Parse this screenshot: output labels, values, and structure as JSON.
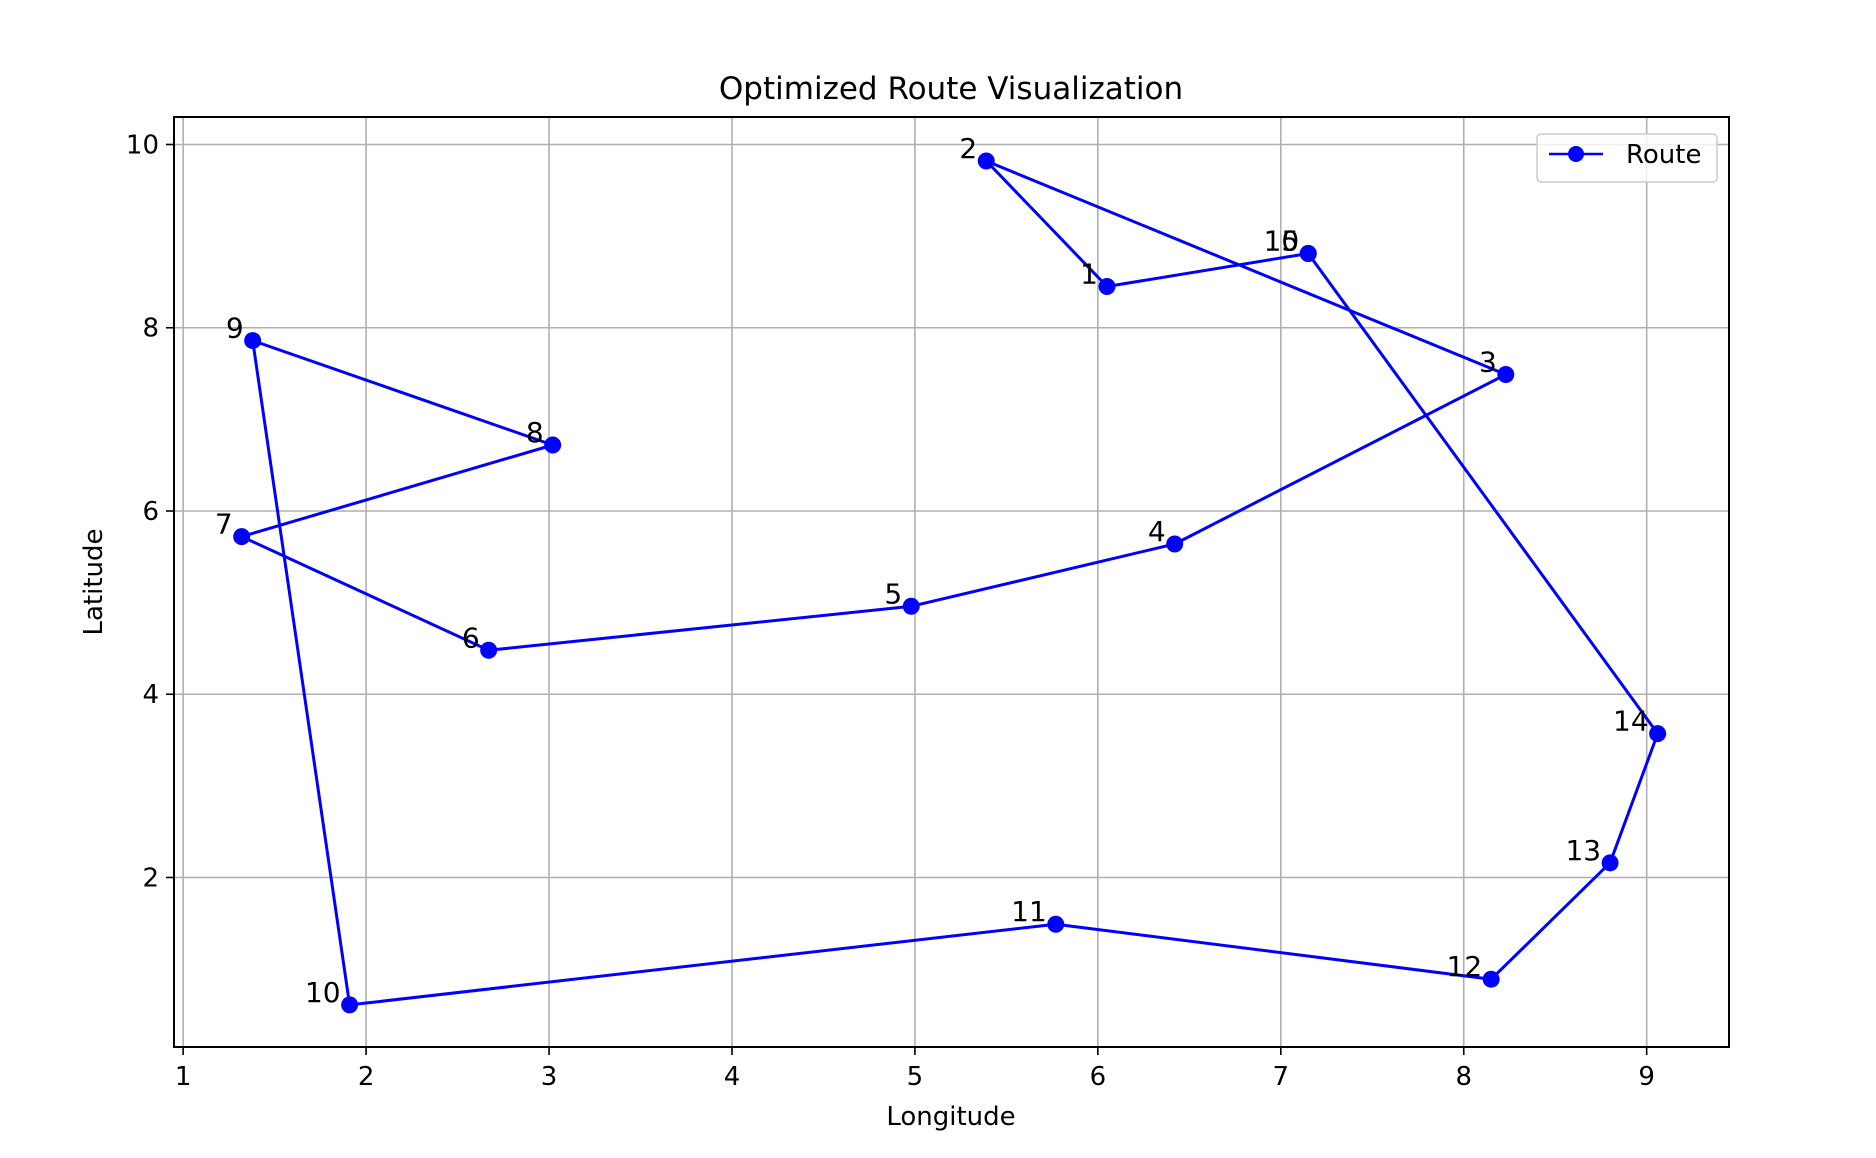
{
  "chart_data": {
    "type": "line",
    "title": "Optimized Route Visualization",
    "xlabel": "Longitude",
    "ylabel": "Latitude",
    "xlim": [
      0.95,
      9.45
    ],
    "ylim": [
      0.15,
      10.3
    ],
    "xticks": [
      1,
      2,
      3,
      4,
      5,
      6,
      7,
      8,
      9
    ],
    "yticks": [
      2,
      4,
      6,
      8,
      10
    ],
    "grid": true,
    "legend_position": "upper right",
    "series": [
      {
        "name": "Route",
        "color": "#0000ff",
        "marker": "circle",
        "points": [
          {
            "label": "1",
            "x": 6.05,
            "y": 8.45
          },
          {
            "label": "2",
            "x": 5.39,
            "y": 9.82
          },
          {
            "label": "3",
            "x": 8.23,
            "y": 7.49
          },
          {
            "label": "4",
            "x": 6.42,
            "y": 5.64
          },
          {
            "label": "5",
            "x": 4.98,
            "y": 4.96
          },
          {
            "label": "6",
            "x": 2.67,
            "y": 4.48
          },
          {
            "label": "7",
            "x": 1.32,
            "y": 5.72
          },
          {
            "label": "8",
            "x": 3.02,
            "y": 6.72
          },
          {
            "label": "9",
            "x": 1.38,
            "y": 7.86
          },
          {
            "label": "10",
            "x": 1.91,
            "y": 0.61
          },
          {
            "label": "11",
            "x": 5.77,
            "y": 1.49
          },
          {
            "label": "12",
            "x": 8.15,
            "y": 0.89
          },
          {
            "label": "13",
            "x": 8.8,
            "y": 2.16
          },
          {
            "label": "14",
            "x": 9.06,
            "y": 3.57
          },
          {
            "label": "15",
            "x": 7.15,
            "y": 8.81
          },
          {
            "label": "0",
            "x": 7.15,
            "y": 8.81
          }
        ],
        "route_order": [
          "1",
          "2",
          "3",
          "4",
          "5",
          "6",
          "7",
          "8",
          "9",
          "10",
          "11",
          "12",
          "13",
          "14",
          "15",
          "1"
        ]
      }
    ]
  }
}
